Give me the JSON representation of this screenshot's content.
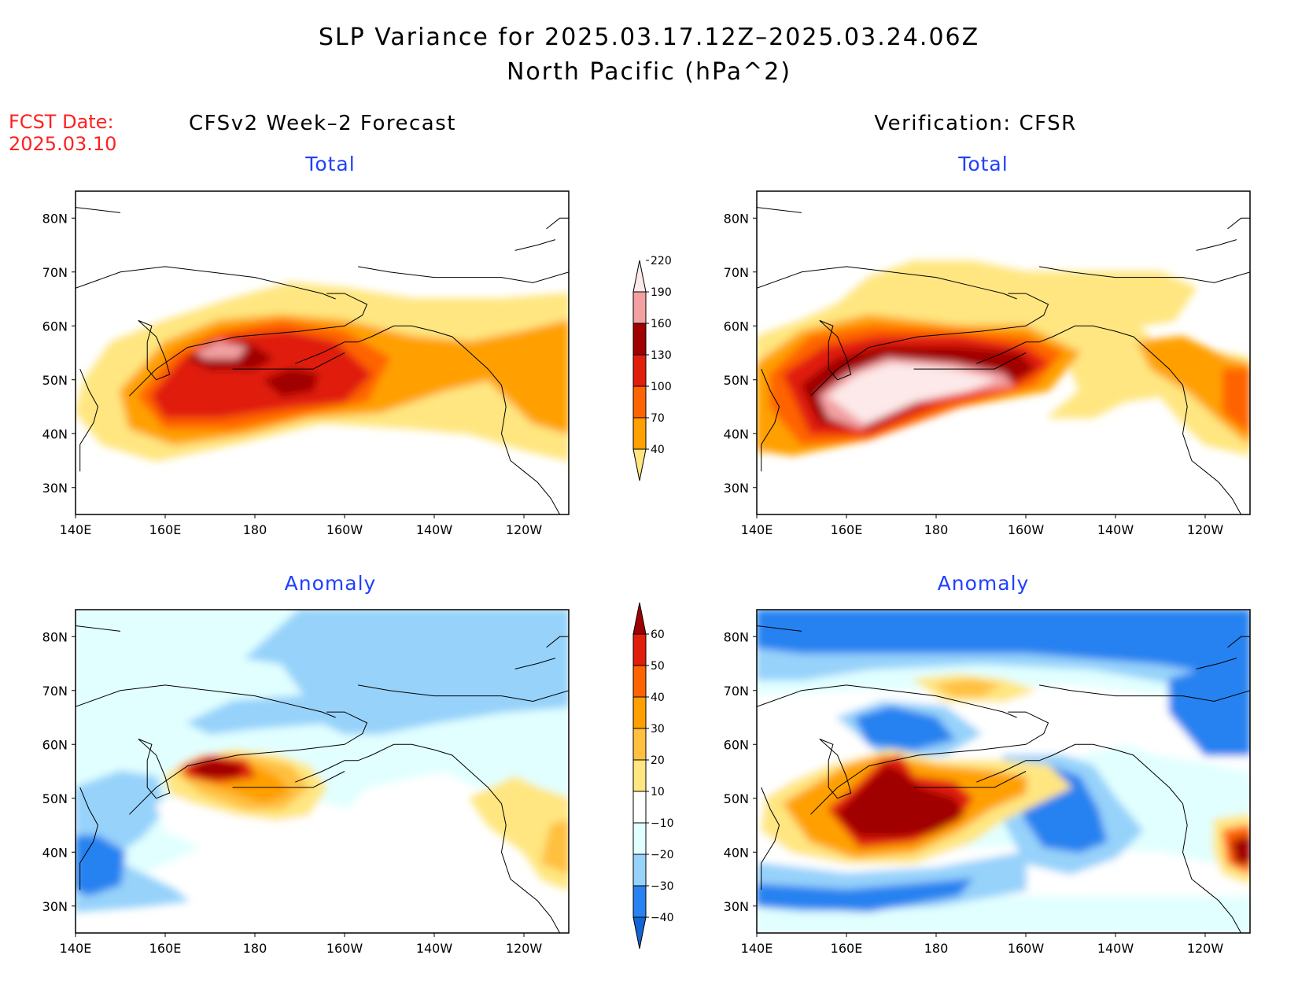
{
  "title": {
    "line1": "SLP Variance for 2025.03.17.12Z–2025.03.24.06Z",
    "line2": "North Pacific (hPa^2)"
  },
  "forecast_date": {
    "label": "FCST Date:",
    "value": "2025.03.10"
  },
  "columns": {
    "left": "CFSv2 Week–2 Forecast",
    "right": "Verification: CFSR"
  },
  "panels": [
    {
      "id": "fcst-total",
      "subtitle": "Total"
    },
    {
      "id": "verif-total",
      "subtitle": "Total"
    },
    {
      "id": "fcst-anomaly",
      "subtitle": "Anomaly"
    },
    {
      "id": "verif-anomaly",
      "subtitle": "Anomaly"
    }
  ],
  "axes": {
    "lat_ticks": [
      "30N",
      "40N",
      "50N",
      "60N",
      "70N",
      "80N"
    ],
    "lon_ticks": [
      "140E",
      "160E",
      "180",
      "160W",
      "140W",
      "120W"
    ]
  },
  "colorbars": {
    "total": {
      "levels": [
        "40",
        "70",
        "100",
        "130",
        "160",
        "190",
        "220"
      ],
      "colors": [
        "#ffe680",
        "#ffa000",
        "#ff6400",
        "#e01e0a",
        "#a00000",
        "#f2a0a2",
        "#fde9e9"
      ]
    },
    "anomaly": {
      "levels": [
        "-40",
        "-30",
        "-20",
        "-10",
        "10",
        "20",
        "30",
        "40",
        "50",
        "60"
      ],
      "colors": [
        "#1464d2",
        "#2882f0",
        "#96d2fa",
        "#e1ffff",
        "#ffffff",
        "#ffe680",
        "#ffc040",
        "#ffa000",
        "#ff6400",
        "#e01e0a",
        "#a00000"
      ]
    }
  }
}
